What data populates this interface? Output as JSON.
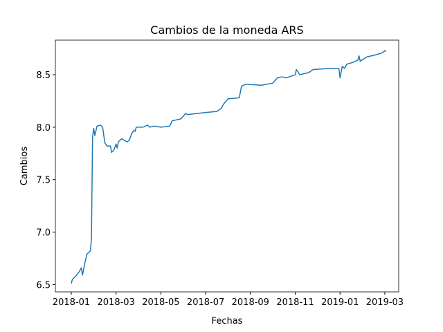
{
  "chart_data": {
    "type": "line",
    "title": "Cambios de la moneda ARS",
    "x_label": "Fechas",
    "y_label": "Cambios",
    "series": [
      {
        "color": "#1f77b4",
        "x": [
          0,
          0.05,
          0.2,
          0.35,
          0.45,
          0.5,
          0.6,
          0.7,
          0.85,
          0.9,
          0.95,
          1.0,
          1.05,
          1.15,
          1.3,
          1.4,
          1.5,
          1.6,
          1.75,
          1.8,
          1.9,
          2.0,
          2.05,
          2.1,
          2.25,
          2.4,
          2.5,
          2.6,
          2.7,
          2.8,
          2.85,
          2.9,
          3.2,
          3.4,
          3.5,
          3.7,
          4.0,
          4.4,
          4.5,
          4.9,
          5.1,
          5.2,
          6.0,
          6.5,
          6.7,
          6.8,
          7.0,
          7.5,
          7.6,
          7.8,
          8.5,
          9.0,
          9.2,
          9.4,
          9.6,
          10.0,
          10.05,
          10.2,
          10.6,
          10.8,
          11.5,
          11.95,
          12.0,
          12.1,
          12.2,
          12.3,
          12.6,
          12.8,
          12.85,
          12.9,
          13.2,
          13.6,
          13.9,
          14.0,
          14.05
        ],
        "values": [
          6.51,
          6.55,
          6.58,
          6.62,
          6.66,
          6.59,
          6.7,
          6.79,
          6.82,
          6.93,
          7.9,
          7.99,
          7.92,
          8.01,
          8.02,
          8.0,
          7.85,
          7.82,
          7.82,
          7.76,
          7.78,
          7.84,
          7.8,
          7.86,
          7.89,
          7.87,
          7.86,
          7.88,
          7.94,
          7.97,
          7.96,
          8.0,
          8.0,
          8.02,
          8.0,
          8.01,
          8.0,
          8.01,
          8.06,
          8.08,
          8.13,
          8.12,
          8.14,
          8.15,
          8.18,
          8.22,
          8.27,
          8.28,
          8.39,
          8.41,
          8.4,
          8.42,
          8.47,
          8.48,
          8.47,
          8.5,
          8.55,
          8.5,
          8.52,
          8.55,
          8.56,
          8.56,
          8.47,
          8.58,
          8.56,
          8.6,
          8.62,
          8.64,
          8.68,
          8.63,
          8.67,
          8.69,
          8.71,
          8.73,
          8.72
        ]
      }
    ],
    "xlim": [
      -0.71,
      14.62
    ],
    "xticks": [
      {
        "value": 0,
        "label": "2018-01"
      },
      {
        "value": 2,
        "label": "2018-03"
      },
      {
        "value": 4,
        "label": "2018-05"
      },
      {
        "value": 6,
        "label": "2018-07"
      },
      {
        "value": 8,
        "label": "2018-09"
      },
      {
        "value": 10,
        "label": "2018-11"
      },
      {
        "value": 12,
        "label": "2019-01"
      },
      {
        "value": 14,
        "label": "2019-03"
      }
    ],
    "ylim": [
      6.43,
      8.83
    ],
    "yticks": [
      6.5,
      {
        "value": 7,
        "label": "7.0"
      },
      7.5,
      {
        "value": 8,
        "label": "8.0"
      },
      8.5
    ]
  }
}
